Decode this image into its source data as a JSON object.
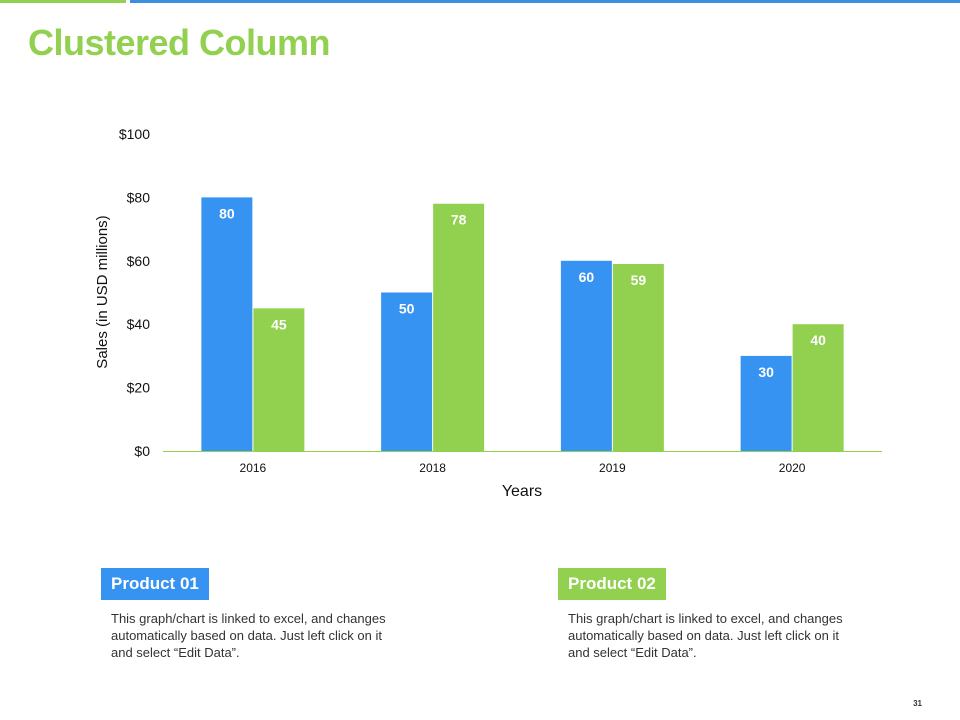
{
  "slide": {
    "title": "Clustered Column",
    "page_number": "31"
  },
  "colors": {
    "product1": "#3793f1",
    "product2": "#92d050",
    "title": "#92d050"
  },
  "chart_data": {
    "type": "bar",
    "categories": [
      "2016",
      "2018",
      "2019",
      "2020"
    ],
    "series": [
      {
        "name": "Product 01",
        "values": [
          80,
          50,
          60,
          30
        ]
      },
      {
        "name": "Product 02",
        "values": [
          45,
          78,
          59,
          40
        ]
      }
    ],
    "xlabel": "Years",
    "ylabel": "Sales (in USD millions)",
    "ylim": [
      0,
      100
    ],
    "yticks": [
      "$0",
      "$20",
      "$40",
      "$60",
      "$80",
      "$100"
    ],
    "grid": false,
    "legend": "none"
  },
  "cards": [
    {
      "label": "Product 01",
      "text": "This graph/chart is linked to excel, and changes automatically based on data. Just left click on it and select “Edit Data”."
    },
    {
      "label": "Product 02",
      "text": "This graph/chart is linked to excel, and changes automatically based on data. Just left click on it and select “Edit Data”."
    }
  ]
}
